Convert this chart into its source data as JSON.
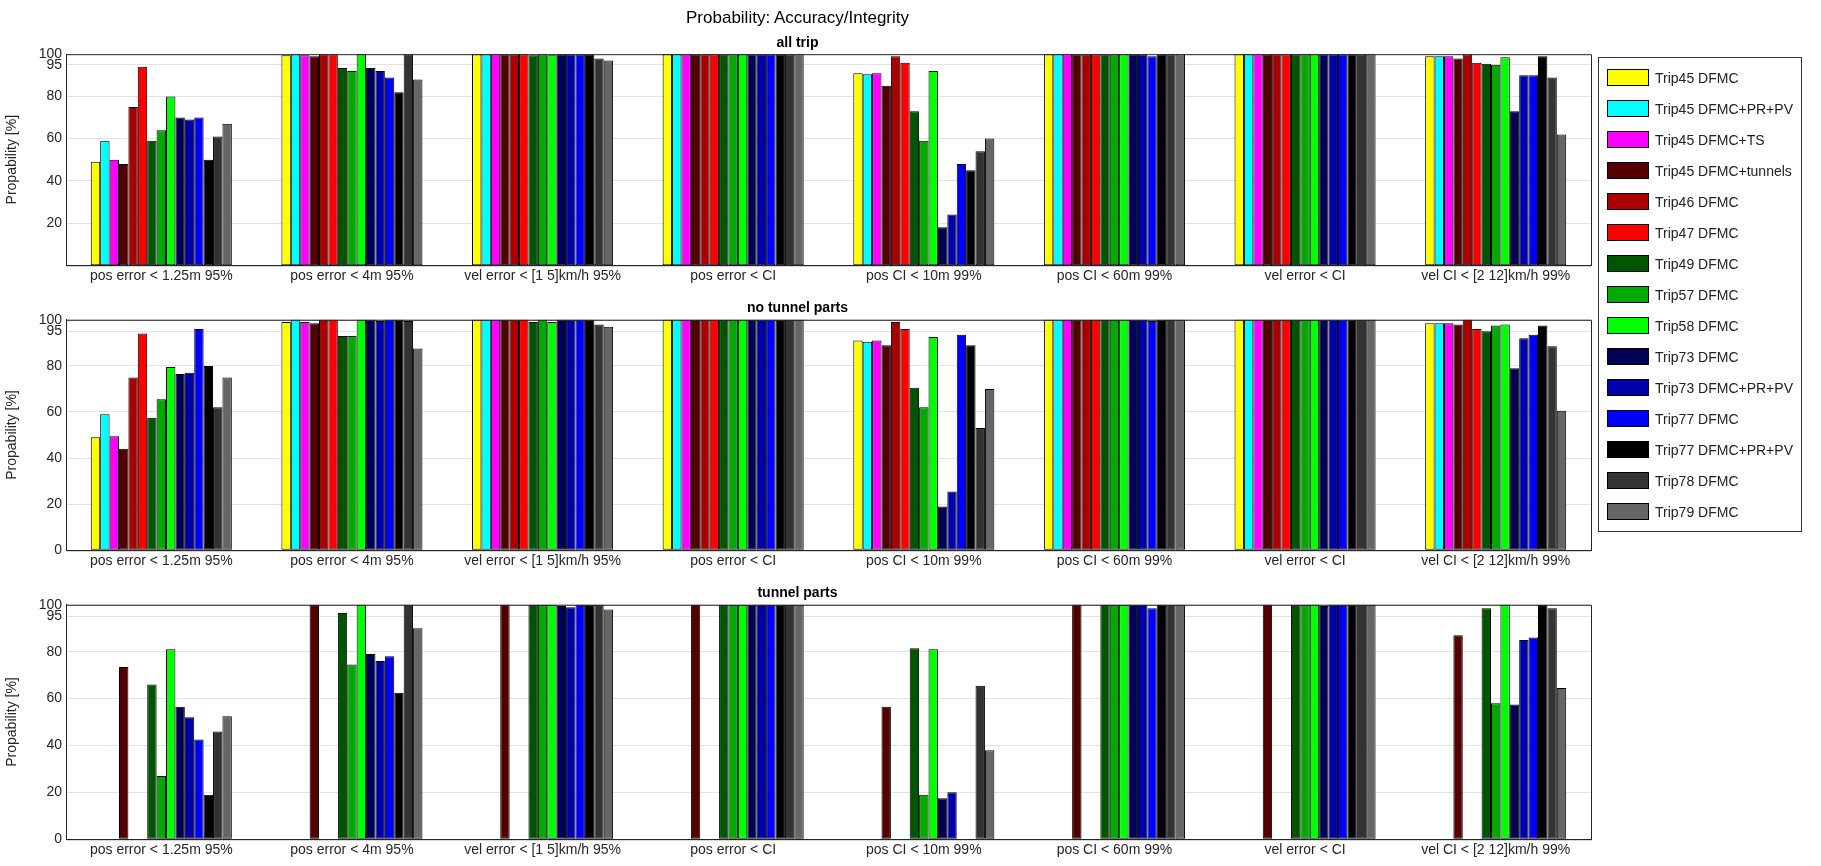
{
  "chart_data": [
    {
      "type": "bar",
      "title": "Probability: Accuracy/Integrity",
      "subtitle": "all trip",
      "ylabel": "Propability [%]",
      "categories": [
        "pos error < 1.25m 95%",
        "pos error < 4m 95%",
        "vel error < [1 5]km/h 95%",
        "pos error < CI",
        "pos CI < 10m 99%",
        "pos CI < 60m 99%",
        "vel error < CI",
        "vel CI < [2 12]km/h 99%"
      ],
      "ylim": [
        0,
        100
      ],
      "yticks": [
        20,
        40,
        60,
        80,
        95,
        100
      ],
      "grid": "y",
      "legend": "right",
      "series": [
        {
          "name": "Trip45 DFMC",
          "color": "#ffff00",
          "values": [
            49,
            99.5,
            100,
            100,
            91,
            100,
            100,
            99
          ]
        },
        {
          "name": "Trip45 DFMC+PR+PV",
          "color": "#00ffff",
          "values": [
            59,
            100,
            100,
            100,
            90.5,
            100,
            100,
            99
          ]
        },
        {
          "name": "Trip45 DFMC+TS",
          "color": "#ff00ff",
          "values": [
            50,
            99.5,
            100,
            100,
            91,
            100,
            100,
            99
          ]
        },
        {
          "name": "Trip45 DFMC+tunnels",
          "color": "#550000",
          "values": [
            48,
            99,
            100,
            100,
            85,
            100,
            100,
            98
          ]
        },
        {
          "name": "Trip46 DFMC",
          "color": "#aa0000",
          "values": [
            75,
            100,
            100,
            100,
            99,
            100,
            100,
            100
          ]
        },
        {
          "name": "Trip47 DFMC",
          "color": "#ff0000",
          "values": [
            94,
            100,
            100,
            100,
            96,
            100,
            100,
            96
          ]
        },
        {
          "name": "Trip49 DFMC",
          "color": "#005500",
          "values": [
            59,
            93.5,
            99.5,
            100,
            73,
            100,
            100,
            95.5
          ]
        },
        {
          "name": "Trip57 DFMC",
          "color": "#00aa00",
          "values": [
            64,
            92,
            100,
            100,
            59,
            100,
            100,
            95
          ]
        },
        {
          "name": "Trip58 DFMC",
          "color": "#00ff00",
          "values": [
            80,
            100,
            99.5,
            100,
            92,
            100,
            100,
            98.5
          ]
        },
        {
          "name": "Trip73 DFMC",
          "color": "#000055",
          "values": [
            70,
            93.5,
            100,
            100,
            18,
            100,
            100,
            73
          ]
        },
        {
          "name": "Trip73 DFMC+PR+PV",
          "color": "#0000aa",
          "values": [
            69,
            92,
            100,
            100,
            24,
            100,
            100,
            90
          ]
        },
        {
          "name": "Trip77 DFMC",
          "color": "#0000ff",
          "values": [
            70,
            89,
            100,
            100,
            48,
            99,
            100,
            90
          ]
        },
        {
          "name": "Trip77 DFMC+PR+PV",
          "color": "#000000",
          "values": [
            50,
            82,
            100,
            100,
            45,
            100,
            100,
            99
          ]
        },
        {
          "name": "Trip78 DFMC",
          "color": "#333333",
          "values": [
            61,
            100,
            98,
            100,
            54,
            100,
            100,
            89
          ]
        },
        {
          "name": "Trip79 DFMC",
          "color": "#666666",
          "values": [
            67,
            88,
            97,
            100,
            60,
            100,
            100,
            62
          ]
        }
      ]
    },
    {
      "type": "bar",
      "title": "no tunnel parts",
      "ylabel": "Propability [%]",
      "categories": [
        "pos error < 1.25m 95%",
        "pos error < 4m 95%",
        "vel error < [1 5]km/h 95%",
        "pos error < CI",
        "pos CI < 10m 99%",
        "pos CI < 60m 99%",
        "vel error < CI",
        "vel CI < [2 12]km/h 99%"
      ],
      "ylim": [
        0,
        100
      ],
      "yticks": [
        0,
        20,
        40,
        60,
        80,
        95,
        100
      ],
      "grid": "y",
      "series": [
        {
          "color": "#ffff00",
          "values": [
            49,
            99,
            100,
            100,
            91,
            100,
            100,
            98.5
          ]
        },
        {
          "color": "#00ffff",
          "values": [
            59,
            100,
            100,
            100,
            90.5,
            100,
            100,
            98.5
          ]
        },
        {
          "color": "#ff00ff",
          "values": [
            49.5,
            99,
            100,
            100,
            91,
            100,
            100,
            98.5
          ]
        },
        {
          "color": "#550000",
          "values": [
            44,
            98.5,
            100,
            100,
            89,
            100,
            100,
            98
          ]
        },
        {
          "color": "#aa0000",
          "values": [
            75,
            100,
            100,
            100,
            99,
            100,
            100,
            100
          ]
        },
        {
          "color": "#ff0000",
          "values": [
            94,
            100,
            100,
            100,
            96,
            100,
            100,
            96
          ]
        },
        {
          "color": "#005500",
          "values": [
            57.5,
            93,
            99,
            100,
            70.5,
            100,
            100,
            95
          ]
        },
        {
          "color": "#00aa00",
          "values": [
            65.5,
            93,
            100,
            100,
            62,
            100,
            100,
            97.5
          ]
        },
        {
          "color": "#00ff00",
          "values": [
            79.5,
            100,
            99,
            100,
            92.5,
            100,
            100,
            98
          ]
        },
        {
          "color": "#000055",
          "values": [
            76.5,
            100,
            100,
            100,
            19,
            100,
            100,
            79
          ]
        },
        {
          "color": "#0000aa",
          "values": [
            77,
            99.5,
            100,
            100,
            25.5,
            100,
            100,
            92
          ]
        },
        {
          "color": "#0000ff",
          "values": [
            96,
            100,
            100,
            100,
            93.5,
            99.5,
            100,
            93.5
          ]
        },
        {
          "color": "#000000",
          "values": [
            80,
            100,
            100,
            100,
            89,
            100,
            100,
            97.5
          ]
        },
        {
          "color": "#333333",
          "values": [
            62,
            99.5,
            98,
            100,
            53,
            100,
            100,
            88.5
          ]
        },
        {
          "color": "#666666",
          "values": [
            75,
            87.5,
            97,
            100,
            70,
            100,
            100,
            60.5
          ]
        }
      ]
    },
    {
      "type": "bar",
      "title": "tunnel parts",
      "ylabel": "Propability [%]",
      "categories": [
        "pos error < 1.25m 95%",
        "pos error < 4m 95%",
        "vel error < [1 5]km/h 95%",
        "pos error < CI",
        "pos CI < 10m 99%",
        "pos CI < 60m 99%",
        "vel error < CI",
        "vel CI < [2 12]km/h 99%"
      ],
      "ylim": [
        0,
        100
      ],
      "yticks": [
        0,
        20,
        40,
        60,
        80,
        95,
        100
      ],
      "grid": "y",
      "series": [
        {
          "color": "#ffff00",
          "values": [
            0,
            0,
            0,
            0,
            0,
            0,
            0,
            0
          ]
        },
        {
          "color": "#00ffff",
          "values": [
            0,
            0,
            0,
            0,
            0,
            0,
            0,
            0
          ]
        },
        {
          "color": "#ff00ff",
          "values": [
            0,
            0,
            0,
            0,
            0,
            0,
            0,
            0
          ]
        },
        {
          "color": "#550000",
          "values": [
            73.5,
            100,
            100,
            100,
            56.5,
            100,
            100,
            87
          ]
        },
        {
          "color": "#aa0000",
          "values": [
            0,
            0,
            0,
            0,
            0,
            0,
            0,
            0
          ]
        },
        {
          "color": "#ff0000",
          "values": [
            0,
            0,
            0,
            0,
            0,
            0,
            0,
            0
          ]
        },
        {
          "color": "#005500",
          "values": [
            66,
            96.5,
            100,
            100,
            81.5,
            100,
            100,
            98.5
          ]
        },
        {
          "color": "#00aa00",
          "values": [
            27,
            74.5,
            100,
            100,
            19,
            100,
            100,
            58
          ]
        },
        {
          "color": "#00ff00",
          "values": [
            81,
            100,
            100,
            100,
            81,
            100,
            100,
            100
          ]
        },
        {
          "color": "#000055",
          "values": [
            56.5,
            79,
            99.5,
            100,
            17.5,
            100,
            99.5,
            57.5
          ]
        },
        {
          "color": "#0000aa",
          "values": [
            52,
            76,
            99,
            100,
            20,
            100,
            100,
            85
          ]
        },
        {
          "color": "#0000ff",
          "values": [
            42.5,
            78,
            100,
            100,
            0,
            98.5,
            100,
            86
          ]
        },
        {
          "color": "#000000",
          "values": [
            19,
            62.5,
            100,
            100,
            0,
            100,
            100,
            100
          ]
        },
        {
          "color": "#333333",
          "values": [
            46,
            100,
            100,
            100,
            65.5,
            100,
            100,
            98.5
          ]
        },
        {
          "color": "#666666",
          "values": [
            52.5,
            90,
            98,
            100,
            38,
            100,
            100,
            64.5
          ]
        }
      ]
    }
  ]
}
